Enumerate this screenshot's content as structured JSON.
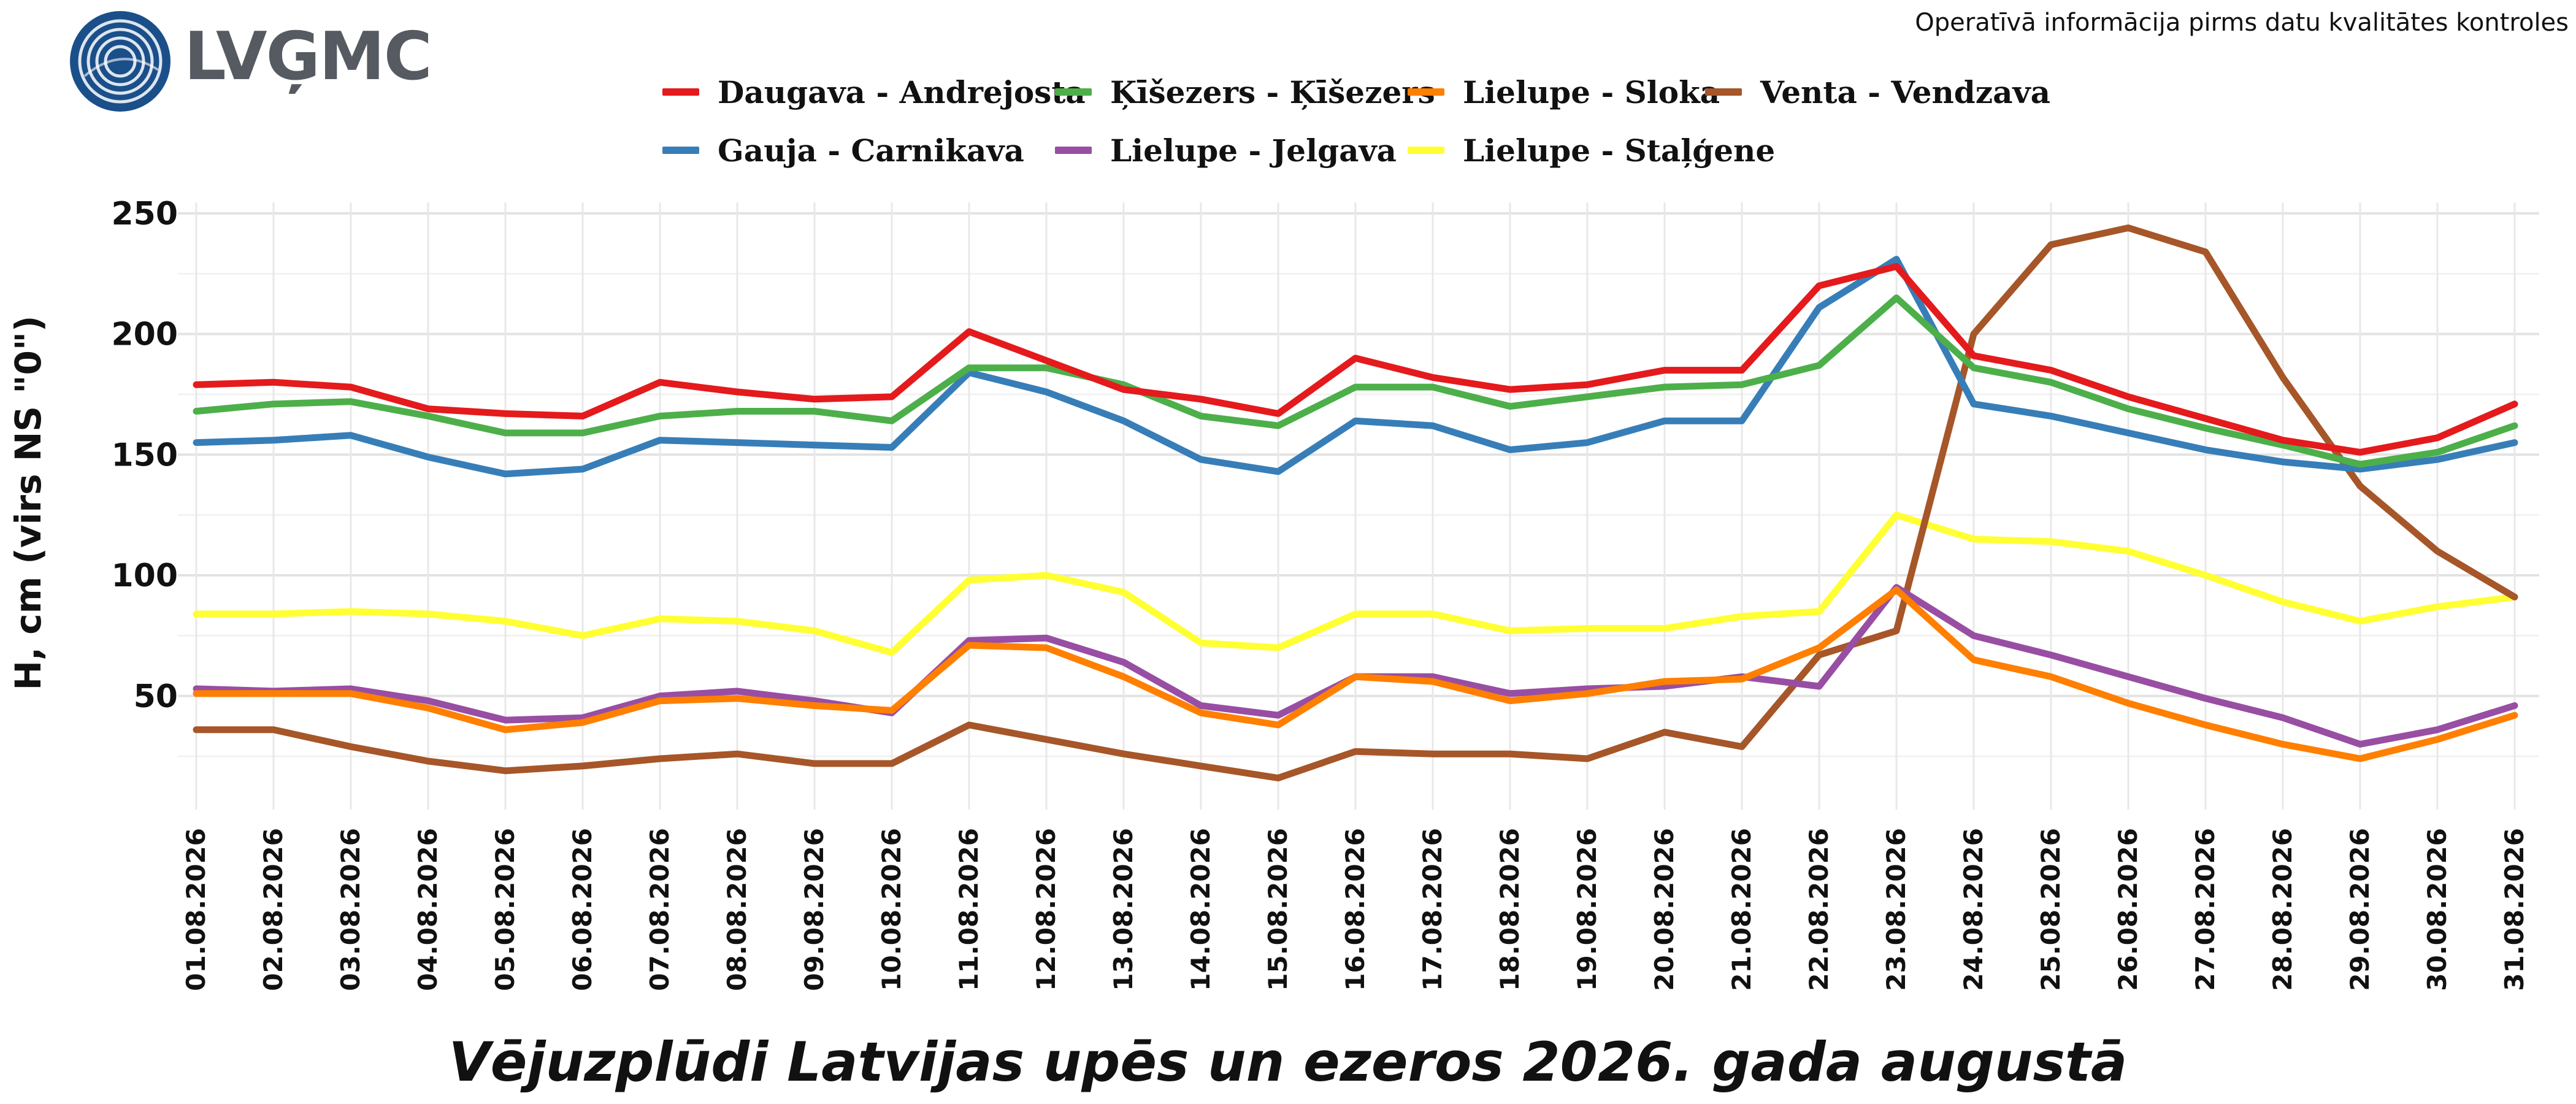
{
  "header": {
    "logo_text": "LVĢMC",
    "subtitle": "Operatīvā informācija pirms datu kvalitātes kontroles"
  },
  "chart_data": {
    "type": "line",
    "title": "Vējuzplūdi Latvijas upēs un ezeros 2026. gada augustā",
    "xlabel": "",
    "ylabel": "H, cm (virs NS \"0\")",
    "ylim": [
      8,
      252
    ],
    "yticks": [
      50,
      100,
      150,
      200,
      250
    ],
    "grid": true,
    "legend_position": "top",
    "categories": [
      "01.08.2026",
      "02.08.2026",
      "03.08.2026",
      "04.08.2026",
      "05.08.2026",
      "06.08.2026",
      "07.08.2026",
      "08.08.2026",
      "09.08.2026",
      "10.08.2026",
      "11.08.2026",
      "12.08.2026",
      "13.08.2026",
      "14.08.2026",
      "15.08.2026",
      "16.08.2026",
      "17.08.2026",
      "18.08.2026",
      "19.08.2026",
      "20.08.2026",
      "21.08.2026",
      "22.08.2026",
      "23.08.2026",
      "24.08.2026",
      "25.08.2026",
      "26.08.2026",
      "27.08.2026",
      "28.08.2026",
      "29.08.2026",
      "30.08.2026",
      "31.08.2026"
    ],
    "series": [
      {
        "name": "Daugava - Andrejosta",
        "color": "#e41a1c",
        "values": [
          179,
          180,
          178,
          169,
          167,
          166,
          180,
          176,
          173,
          174,
          201,
          189,
          177,
          173,
          167,
          190,
          182,
          177,
          179,
          185,
          185,
          220,
          228,
          191,
          185,
          174,
          165,
          156,
          151,
          157,
          171
        ]
      },
      {
        "name": "Ķīšezers - Ķīšezers",
        "color": "#4daf4a",
        "values": [
          168,
          171,
          172,
          166,
          159,
          159,
          166,
          168,
          168,
          164,
          186,
          186,
          179,
          166,
          162,
          178,
          178,
          170,
          174,
          178,
          179,
          187,
          215,
          186,
          180,
          169,
          161,
          154,
          146,
          151,
          162
        ]
      },
      {
        "name": "Lielupe - Sloka",
        "color": "#ff7f00",
        "values": [
          51,
          51,
          51,
          45,
          36,
          39,
          48,
          49,
          46,
          44,
          71,
          70,
          58,
          43,
          38,
          58,
          56,
          48,
          51,
          56,
          57,
          70,
          94,
          65,
          58,
          47,
          38,
          30,
          24,
          32,
          42
        ]
      },
      {
        "name": "Venta - Vendzava",
        "color": "#a65628",
        "values": [
          36,
          36,
          29,
          23,
          19,
          21,
          24,
          26,
          22,
          22,
          38,
          32,
          26,
          21,
          16,
          27,
          26,
          26,
          24,
          35,
          29,
          67,
          77,
          200,
          237,
          244,
          234,
          182,
          137,
          110,
          91
        ]
      },
      {
        "name": "Gauja - Carnikava",
        "color": "#377eb8",
        "values": [
          155,
          156,
          158,
          149,
          142,
          144,
          156,
          155,
          154,
          153,
          184,
          176,
          164,
          148,
          143,
          164,
          162,
          152,
          155,
          164,
          164,
          211,
          231,
          171,
          166,
          159,
          152,
          147,
          144,
          148,
          155
        ]
      },
      {
        "name": "Lielupe - Jelgava",
        "color": "#984ea3",
        "values": [
          53,
          52,
          53,
          48,
          40,
          41,
          50,
          52,
          48,
          43,
          73,
          74,
          64,
          46,
          42,
          58,
          58,
          51,
          53,
          54,
          58,
          54,
          95,
          75,
          67,
          58,
          49,
          41,
          30,
          36,
          46
        ]
      },
      {
        "name": "Lielupe - Staļģene",
        "color": "#ffff33",
        "values": [
          84,
          84,
          85,
          84,
          81,
          75,
          82,
          81,
          77,
          68,
          98,
          100,
          93,
          72,
          70,
          84,
          84,
          77,
          78,
          78,
          83,
          85,
          125,
          115,
          114,
          110,
          100,
          89,
          81,
          87,
          91
        ]
      }
    ]
  }
}
